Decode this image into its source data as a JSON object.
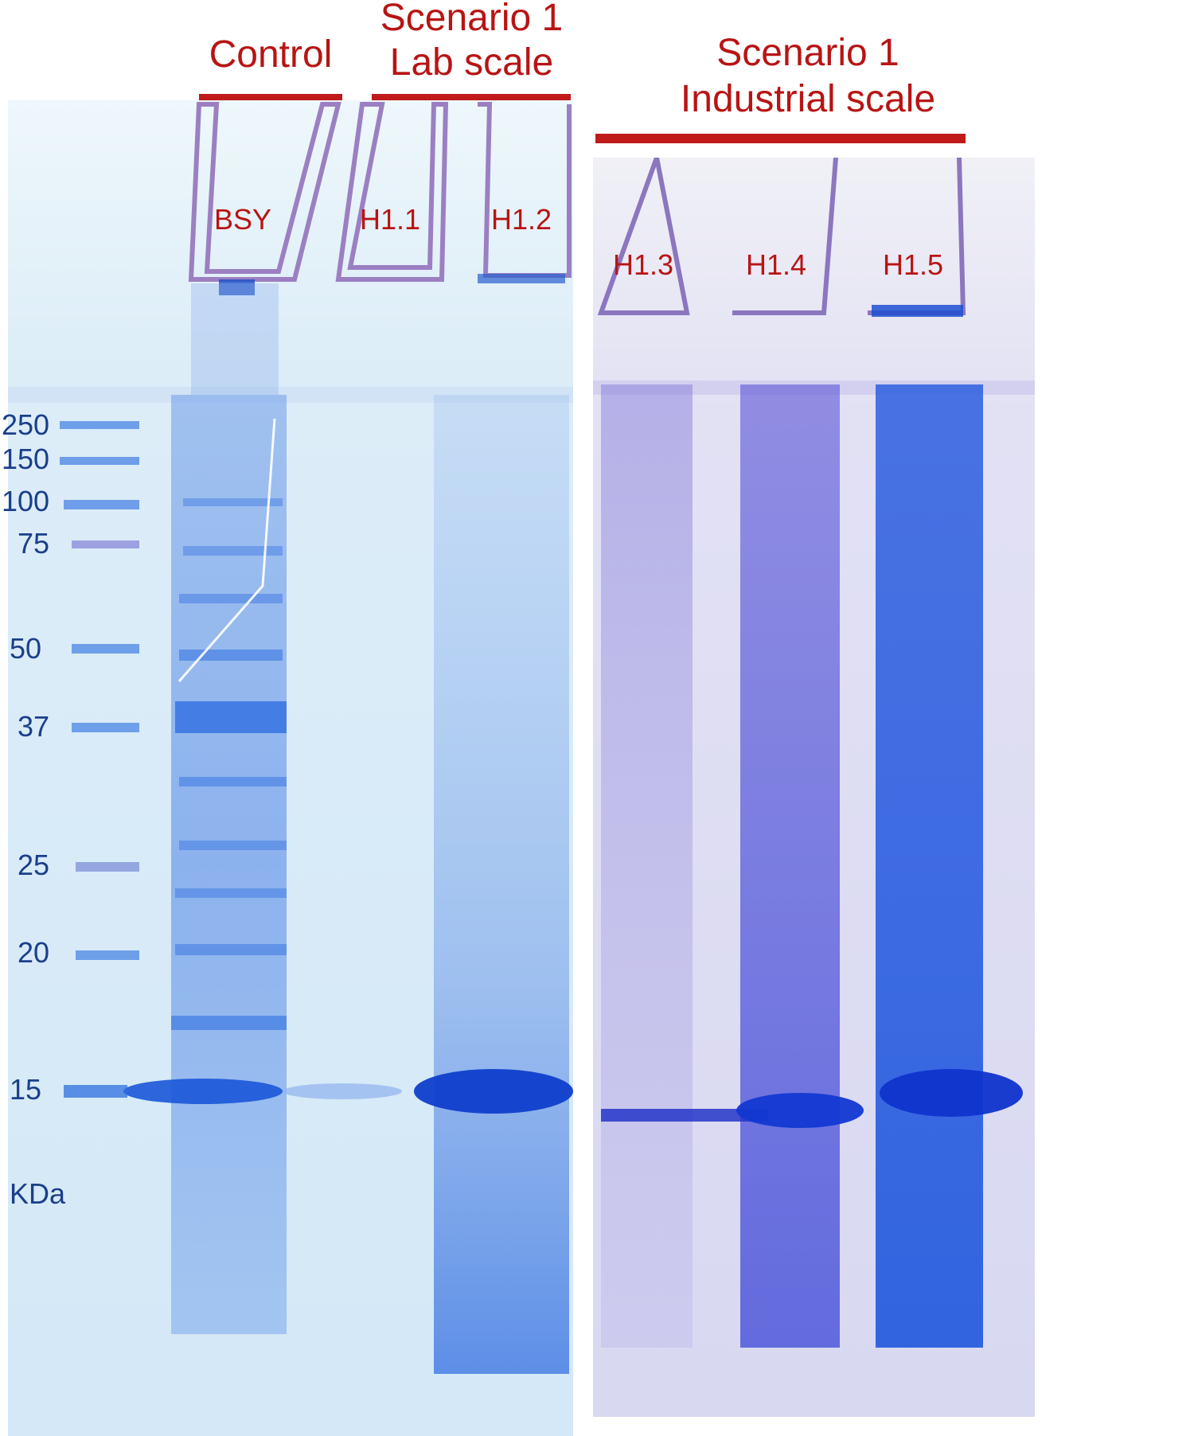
{
  "headers": {
    "control": "Control",
    "lab_line1": "Scenario 1",
    "lab_line2": "Lab scale",
    "industrial_line1": "Scenario 1",
    "industrial_line2": "Industrial scale"
  },
  "lanes": {
    "bsy": "BSY",
    "h11": "H1.1",
    "h12": "H1.2",
    "h13": "H1.3",
    "h14": "H1.4",
    "h15": "H1.5"
  },
  "markers": {
    "m250": "250",
    "m150": "150",
    "m100": "100",
    "m75": "75",
    "m50": "50",
    "m37": "37",
    "m25": "25",
    "m20": "20",
    "m15": "15",
    "unit": "KDa"
  },
  "colors": {
    "label_red": "#b81414",
    "bar_red": "#c01a1a",
    "gel_left_bg": "#d8ecf8",
    "gel_right_bg": "#dcdcf3",
    "stain": "#1f5fdc",
    "marker_text": "#1a3f8a"
  }
}
